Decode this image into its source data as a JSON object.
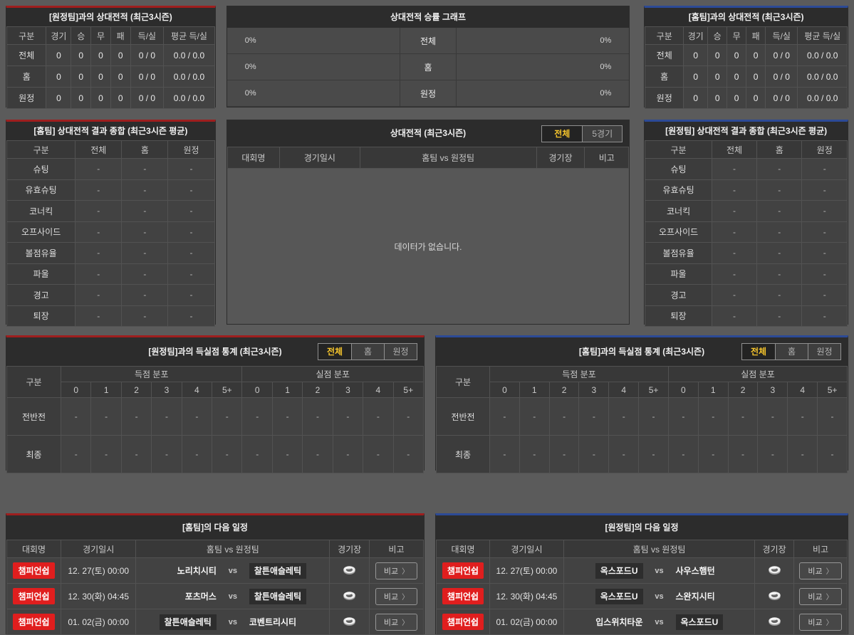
{
  "palette": {
    "accent_red": "#9e1e1e",
    "accent_blue": "#2c4a96",
    "badge_red": "#e01e1e",
    "tab_active_text": "#f5c42c"
  },
  "icons": {
    "compare_chevron": "〉",
    "stadium": "stadium-icon"
  },
  "top_left_record": {
    "title": "[원정팀]과의 상대전적 (최근3시즌)",
    "columns": [
      "구분",
      "경기",
      "승",
      "무",
      "패",
      "득/실",
      "평균 득/실"
    ],
    "rows": [
      [
        "전체",
        "0",
        "0",
        "0",
        "0",
        "0 / 0",
        "0.0 / 0.0"
      ],
      [
        "홈",
        "0",
        "0",
        "0",
        "0",
        "0 / 0",
        "0.0 / 0.0"
      ],
      [
        "원정",
        "0",
        "0",
        "0",
        "0",
        "0 / 0",
        "0.0 / 0.0"
      ]
    ]
  },
  "winrate_graph": {
    "title": "상대전적 승률 그래프",
    "rows": [
      {
        "left_value": "0%",
        "label": "전체",
        "right_value": "0%"
      },
      {
        "left_value": "0%",
        "label": "홈",
        "right_value": "0%"
      },
      {
        "left_value": "0%",
        "label": "원정",
        "right_value": "0%"
      }
    ]
  },
  "top_right_record": {
    "title": "[홈팀]과의 상대전적 (최근3시즌)",
    "columns": [
      "구분",
      "경기",
      "승",
      "무",
      "패",
      "득/실",
      "평균 득/실"
    ],
    "rows": [
      [
        "전체",
        "0",
        "0",
        "0",
        "0",
        "0 / 0",
        "0.0 / 0.0"
      ],
      [
        "홈",
        "0",
        "0",
        "0",
        "0",
        "0 / 0",
        "0.0 / 0.0"
      ],
      [
        "원정",
        "0",
        "0",
        "0",
        "0",
        "0 / 0",
        "0.0 / 0.0"
      ]
    ]
  },
  "home_summary": {
    "title": "[홈팀] 상대전적 결과 종합 (최근3시즌 평균)",
    "columns": [
      "구분",
      "전체",
      "홈",
      "원정"
    ],
    "rows": [
      [
        "슈팅",
        "-",
        "-",
        "-"
      ],
      [
        "유효슈팅",
        "-",
        "-",
        "-"
      ],
      [
        "코너킥",
        "-",
        "-",
        "-"
      ],
      [
        "오프사이드",
        "-",
        "-",
        "-"
      ],
      [
        "볼점유율",
        "-",
        "-",
        "-"
      ],
      [
        "파울",
        "-",
        "-",
        "-"
      ],
      [
        "경고",
        "-",
        "-",
        "-"
      ],
      [
        "퇴장",
        "-",
        "-",
        "-"
      ]
    ]
  },
  "h2h_matches": {
    "title": "상대전적 (최근3시즌)",
    "tabs": [
      "전체",
      "5경기"
    ],
    "active_tab": "전체",
    "columns": [
      "대회명",
      "경기일시",
      "홈팀  vs  원정팀",
      "경기장",
      "비고"
    ],
    "empty_message": "데이터가 없습니다."
  },
  "away_summary": {
    "title": "[원정팀] 상대전적 결과 종합 (최근3시즌 평균)",
    "columns": [
      "구분",
      "전체",
      "홈",
      "원정"
    ],
    "rows": [
      [
        "슈팅",
        "-",
        "-",
        "-"
      ],
      [
        "유효슈팅",
        "-",
        "-",
        "-"
      ],
      [
        "코너킥",
        "-",
        "-",
        "-"
      ],
      [
        "오프사이드",
        "-",
        "-",
        "-"
      ],
      [
        "볼점유율",
        "-",
        "-",
        "-"
      ],
      [
        "파울",
        "-",
        "-",
        "-"
      ],
      [
        "경고",
        "-",
        "-",
        "-"
      ],
      [
        "퇴장",
        "-",
        "-",
        "-"
      ]
    ]
  },
  "score_stats_vs_away": {
    "title": "[원정팀]과의 득실점 통계 (최근3시즌)",
    "tabs": [
      "전체",
      "홈",
      "원정"
    ],
    "active_tab": "전체",
    "corner_label": "구분",
    "group_headers": [
      "득점 분포",
      "실점 분포"
    ],
    "subcolumns": [
      "0",
      "1",
      "2",
      "3",
      "4",
      "5+",
      "0",
      "1",
      "2",
      "3",
      "4",
      "5+"
    ],
    "rows": [
      [
        "전반전",
        "-",
        "-",
        "-",
        "-",
        "-",
        "-",
        "-",
        "-",
        "-",
        "-",
        "-",
        "-"
      ],
      [
        "최종",
        "-",
        "-",
        "-",
        "-",
        "-",
        "-",
        "-",
        "-",
        "-",
        "-",
        "-",
        "-"
      ]
    ]
  },
  "score_stats_vs_home": {
    "title": "[홈팀]과의 득실점 통계 (최근3시즌)",
    "tabs": [
      "전체",
      "홈",
      "원정"
    ],
    "active_tab": "전체",
    "corner_label": "구분",
    "group_headers": [
      "득점 분포",
      "실점 분포"
    ],
    "subcolumns": [
      "0",
      "1",
      "2",
      "3",
      "4",
      "5+",
      "0",
      "1",
      "2",
      "3",
      "4",
      "5+"
    ],
    "rows": [
      [
        "전반전",
        "-",
        "-",
        "-",
        "-",
        "-",
        "-",
        "-",
        "-",
        "-",
        "-",
        "-",
        "-"
      ],
      [
        "최종",
        "-",
        "-",
        "-",
        "-",
        "-",
        "-",
        "-",
        "-",
        "-",
        "-",
        "-",
        "-"
      ]
    ]
  },
  "home_schedule": {
    "title": "[홈팀]의 다음 일정",
    "columns": [
      "대회명",
      "경기일시",
      "홈팀  vs  원정팀",
      "경기장",
      "비고"
    ],
    "vs_label": "vs",
    "compare_label": "비교",
    "rows": [
      {
        "league": "챔피언쉽",
        "datetime": "12. 27(토) 00:00",
        "home": "노리치시티",
        "away": "찰튼애슬레틱",
        "highlight": "away"
      },
      {
        "league": "챔피언쉽",
        "datetime": "12. 30(화) 04:45",
        "home": "포츠머스",
        "away": "찰튼애슬레틱",
        "highlight": "away"
      },
      {
        "league": "챔피언쉽",
        "datetime": "01. 02(금) 00:00",
        "home": "찰튼애슬레틱",
        "away": "코벤트리시티",
        "highlight": "home"
      }
    ]
  },
  "away_schedule": {
    "title": "[원정팀]의 다음 일정",
    "columns": [
      "대회명",
      "경기일시",
      "홈팀  vs  원정팀",
      "경기장",
      "비고"
    ],
    "vs_label": "vs",
    "compare_label": "비교",
    "rows": [
      {
        "league": "챔피언쉽",
        "datetime": "12. 27(토) 00:00",
        "home": "옥스포드U",
        "away": "사우스햄턴",
        "highlight": "home"
      },
      {
        "league": "챔피언쉽",
        "datetime": "12. 30(화) 04:45",
        "home": "옥스포드U",
        "away": "스완지시티",
        "highlight": "home"
      },
      {
        "league": "챔피언쉽",
        "datetime": "01. 02(금) 00:00",
        "home": "입스위치타운",
        "away": "옥스포드U",
        "highlight": "away"
      }
    ]
  }
}
